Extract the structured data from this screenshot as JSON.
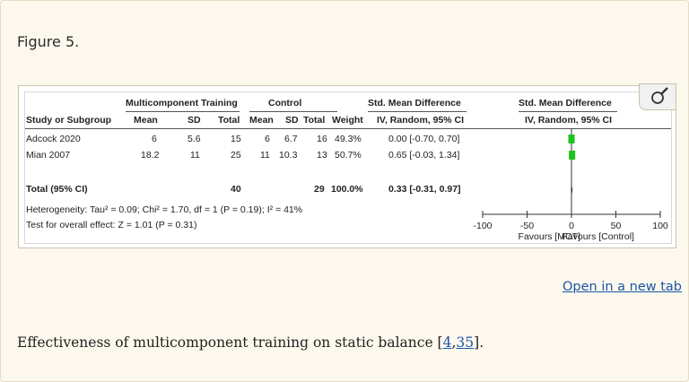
{
  "figure_label": "Figure 5.",
  "table": {
    "group_headers": {
      "experimental": "Multicomponent Training",
      "control": "Control",
      "effect": "Std. Mean Difference",
      "plot": "Std. Mean Difference"
    },
    "columns": {
      "study": "Study or Subgroup",
      "mean_e": "Mean",
      "sd_e": "SD",
      "total_e": "Total",
      "mean_c": "Mean",
      "sd_c": "SD",
      "total_c": "Total",
      "weight": "Weight",
      "ci": "IV, Random, 95% CI",
      "plot_ci": "IV, Random, 95% CI"
    },
    "rows": [
      {
        "study": "Adcock 2020",
        "mean_e": "6",
        "sd_e": "5.6",
        "total_e": "15",
        "mean_c": "6",
        "sd_c": "6.7",
        "total_c": "16",
        "weight": "49.3%",
        "ci": "0.00 [-0.70, 0.70]",
        "smd": 0.0,
        "lo": -0.7,
        "hi": 0.7
      },
      {
        "study": "Mian 2007",
        "mean_e": "18.2",
        "sd_e": "11",
        "total_e": "25",
        "mean_c": "11",
        "sd_c": "10.3",
        "total_c": "13",
        "weight": "50.7%",
        "ci": "0.65 [-0.03, 1.34]",
        "smd": 0.65,
        "lo": -0.03,
        "hi": 1.34
      }
    ],
    "total": {
      "label": "Total (95% CI)",
      "total_e": "40",
      "total_c": "29",
      "weight": "100.0%",
      "ci": "0.33 [-0.31, 0.97]",
      "smd": 0.33,
      "lo": -0.31,
      "hi": 0.97
    },
    "heterogeneity": "Heterogeneity: Tau² = 0.09; Chi² = 1.70, df = 1 (P = 0.19); I² = 41%",
    "overall_effect": "Test for overall effect: Z = 1.01 (P = 0.31)"
  },
  "forest_axis": {
    "ticks": [
      "-100",
      "-50",
      "0",
      "50",
      "100"
    ],
    "tick_values": [
      -100,
      -50,
      0,
      50,
      100
    ],
    "range": [
      -100,
      100
    ],
    "favours_left": "Favours [MCT]",
    "favours_right": "Favours [Control]"
  },
  "colors": {
    "marker": "#1ec21e",
    "diamond": "#000000",
    "link": "#1a56a8"
  },
  "magnify_icon": "magnifying-glass-icon",
  "link_text": "Open in a new tab",
  "caption": {
    "text": "Effectiveness of multicomponent training on static balance [",
    "ref1": "4",
    "sep": ",",
    "ref2": "35",
    "end": "]."
  }
}
